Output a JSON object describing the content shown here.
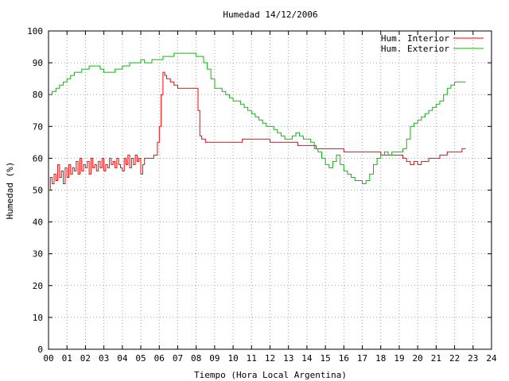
{
  "chart_data": {
    "type": "line",
    "title": "Humedad 14/12/2006",
    "xlabel": "Tiempo (Hora Local Argentina)",
    "ylabel": "Humedad (%)",
    "xlim": [
      0,
      24
    ],
    "ylim": [
      0,
      100
    ],
    "grid": true,
    "legend_position": "top-right",
    "x_ticks": [
      "00",
      "01",
      "02",
      "03",
      "04",
      "05",
      "06",
      "07",
      "08",
      "09",
      "10",
      "11",
      "12",
      "13",
      "14",
      "15",
      "16",
      "17",
      "18",
      "19",
      "20",
      "21",
      "22",
      "23",
      "24"
    ],
    "y_ticks": [
      "0",
      "10",
      "20",
      "30",
      "40",
      "50",
      "60",
      "70",
      "80",
      "90",
      "100"
    ],
    "series": [
      {
        "name": "Hum. Interior",
        "color": "#ff0000",
        "x": [
          0,
          0.1,
          0.2,
          0.3,
          0.4,
          0.5,
          0.6,
          0.7,
          0.8,
          0.9,
          1.0,
          1.1,
          1.2,
          1.3,
          1.4,
          1.5,
          1.6,
          1.7,
          1.8,
          1.9,
          2.0,
          2.1,
          2.2,
          2.3,
          2.4,
          2.5,
          2.6,
          2.7,
          2.8,
          2.9,
          3.0,
          3.1,
          3.2,
          3.3,
          3.4,
          3.5,
          3.6,
          3.7,
          3.8,
          3.9,
          4.0,
          4.1,
          4.2,
          4.3,
          4.4,
          4.5,
          4.6,
          4.7,
          4.8,
          4.9,
          5.0,
          5.1,
          5.2,
          5.3,
          5.4,
          5.5,
          5.7,
          5.9,
          6.0,
          6.1,
          6.2,
          6.3,
          6.4,
          6.5,
          6.6,
          6.8,
          7.0,
          7.2,
          7.5,
          7.8,
          8.0,
          8.1,
          8.2,
          8.3,
          8.5,
          8.8,
          9.0,
          9.5,
          10.0,
          10.5,
          11.0,
          11.5,
          12.0,
          12.5,
          13.0,
          13.5,
          14.0,
          14.5,
          15.0,
          15.5,
          16.0,
          16.5,
          17.0,
          17.5,
          18.0,
          18.5,
          19.0,
          19.2,
          19.4,
          19.6,
          19.8,
          20.0,
          20.2,
          20.4,
          20.6,
          20.8,
          21.0,
          21.2,
          21.4,
          21.6,
          21.8,
          22.0,
          22.2,
          22.4,
          22.6
        ],
        "y": [
          50,
          54,
          52,
          55,
          53,
          58,
          54,
          56,
          52,
          57,
          54,
          58,
          55,
          57,
          56,
          59,
          55,
          60,
          56,
          58,
          57,
          59,
          55,
          60,
          57,
          58,
          56,
          59,
          57,
          60,
          56,
          58,
          57,
          60,
          58,
          59,
          57,
          60,
          58,
          57,
          56,
          60,
          58,
          61,
          57,
          60,
          58,
          61,
          59,
          60,
          55,
          58,
          60,
          60,
          60,
          60,
          61,
          65,
          70,
          80,
          87,
          86,
          85,
          85,
          84,
          83,
          82,
          82,
          82,
          82,
          82,
          75,
          67,
          66,
          65,
          65,
          65,
          65,
          65,
          66,
          66,
          66,
          65,
          65,
          65,
          64,
          64,
          63,
          63,
          63,
          62,
          62,
          62,
          62,
          61,
          61,
          61,
          60,
          59,
          58,
          59,
          58,
          59,
          59,
          60,
          60,
          60,
          61,
          61,
          62,
          62,
          62,
          62,
          63,
          63
        ]
      },
      {
        "name": "Hum. Exterior",
        "color": "#00c000",
        "x": [
          0,
          0.2,
          0.4,
          0.6,
          0.8,
          1.0,
          1.2,
          1.4,
          1.6,
          1.8,
          2.0,
          2.2,
          2.4,
          2.6,
          2.8,
          3.0,
          3.2,
          3.4,
          3.6,
          3.8,
          4.0,
          4.2,
          4.4,
          4.6,
          4.8,
          5.0,
          5.2,
          5.4,
          5.6,
          5.8,
          6.0,
          6.2,
          6.4,
          6.6,
          6.8,
          7.0,
          7.2,
          7.4,
          7.6,
          7.8,
          8.0,
          8.2,
          8.4,
          8.6,
          8.8,
          9.0,
          9.2,
          9.4,
          9.6,
          9.8,
          10.0,
          10.2,
          10.4,
          10.6,
          10.8,
          11.0,
          11.2,
          11.4,
          11.6,
          11.8,
          12.0,
          12.2,
          12.4,
          12.6,
          12.8,
          13.0,
          13.2,
          13.4,
          13.6,
          13.8,
          14.0,
          14.2,
          14.4,
          14.6,
          14.8,
          15.0,
          15.2,
          15.4,
          15.6,
          15.8,
          16.0,
          16.2,
          16.4,
          16.6,
          16.8,
          17.0,
          17.2,
          17.4,
          17.6,
          17.8,
          18.0,
          18.2,
          18.4,
          18.6,
          18.8,
          19.0,
          19.2,
          19.4,
          19.6,
          19.8,
          20.0,
          20.2,
          20.4,
          20.6,
          20.8,
          21.0,
          21.2,
          21.4,
          21.6,
          21.8,
          22.0,
          22.2,
          22.4,
          22.6
        ],
        "y": [
          80,
          81,
          82,
          83,
          84,
          85,
          86,
          87,
          87,
          88,
          88,
          89,
          89,
          89,
          88,
          87,
          87,
          87,
          88,
          88,
          89,
          89,
          90,
          90,
          90,
          91,
          90,
          90,
          91,
          91,
          91,
          92,
          92,
          92,
          93,
          93,
          93,
          93,
          93,
          93,
          92,
          92,
          90,
          88,
          85,
          82,
          82,
          81,
          80,
          79,
          78,
          78,
          77,
          76,
          75,
          74,
          73,
          72,
          71,
          70,
          70,
          69,
          68,
          67,
          66,
          66,
          67,
          68,
          67,
          66,
          66,
          65,
          63,
          62,
          60,
          58,
          57,
          59,
          61,
          58,
          56,
          55,
          54,
          53,
          53,
          52,
          53,
          55,
          58,
          60,
          61,
          62,
          61,
          62,
          62,
          62,
          63,
          66,
          70,
          71,
          72,
          73,
          74,
          75,
          76,
          77,
          78,
          80,
          82,
          83,
          84,
          84,
          84,
          84
        ]
      }
    ]
  }
}
